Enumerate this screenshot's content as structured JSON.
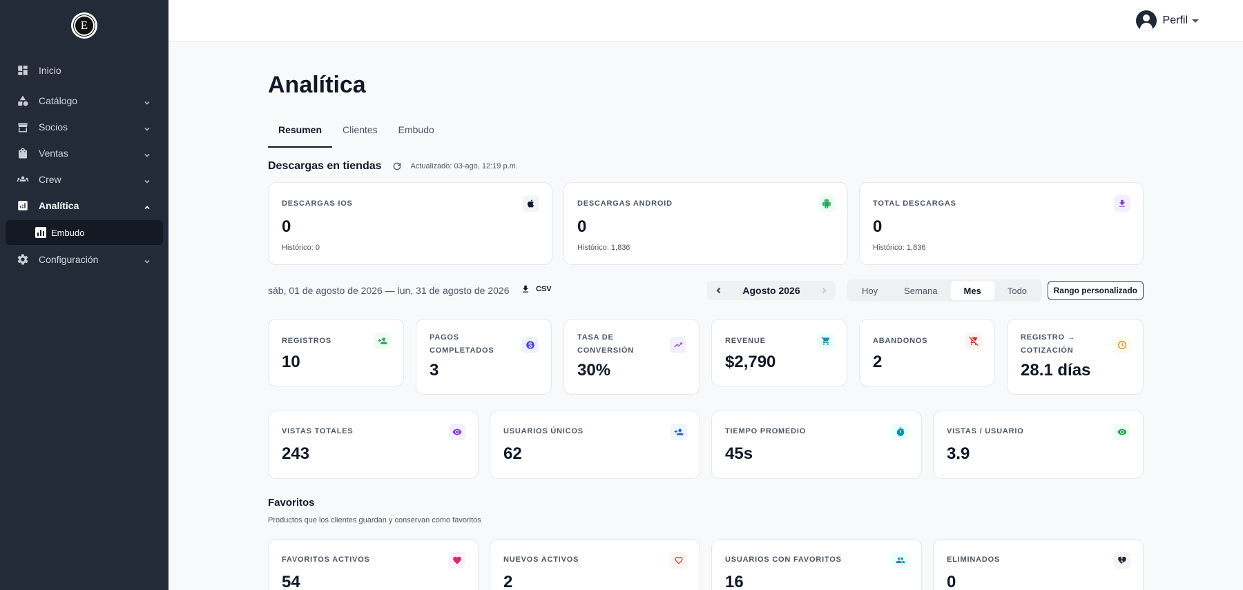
{
  "sidebar": {
    "logo_letter": "E",
    "items": [
      {
        "label": "Inicio"
      },
      {
        "label": "Catálogo"
      },
      {
        "label": "Socios"
      },
      {
        "label": "Ventas"
      },
      {
        "label": "Crew"
      },
      {
        "label": "Analítica"
      },
      {
        "label": "Embudo"
      },
      {
        "label": "Configuración"
      }
    ]
  },
  "topbar": {
    "profile_label": "Perfil"
  },
  "page": {
    "title": "Analítica",
    "tabs": [
      {
        "label": "Resumen"
      },
      {
        "label": "Clientes"
      },
      {
        "label": "Embudo"
      }
    ]
  },
  "downloads": {
    "title": "Descargas en tiendas",
    "updated": "Actualizado: 03-ago, 12:19 p.m.",
    "cards": [
      {
        "label": "Descargas iOS",
        "value": "0",
        "sub": "Histórico: 0",
        "icon": "apple-icon",
        "color": "#111827"
      },
      {
        "label": "Descargas Android",
        "value": "0",
        "sub": "Histórico: 1,836",
        "icon": "android-icon",
        "color": "#22a559"
      },
      {
        "label": "Total descargas",
        "value": "0",
        "sub": "Histórico: 1,836",
        "icon": "download-icon",
        "color": "#7c3aed"
      }
    ]
  },
  "range": {
    "text": "sáb, 01 de agosto de 2026 — lun, 31 de agosto de 2026",
    "csv_label": "CSV",
    "month": "Agosto 2026",
    "segments": [
      {
        "label": "Hoy"
      },
      {
        "label": "Semana"
      },
      {
        "label": "Mes"
      },
      {
        "label": "Todo"
      }
    ],
    "active_segment": "Mes",
    "custom_label": "Rango personalizado"
  },
  "metrics": [
    {
      "label": "Registros",
      "value": "10",
      "icon": "user-plus-icon",
      "color": "#22a559"
    },
    {
      "label": "Pagos completados",
      "value": "3",
      "icon": "dollar-icon",
      "color": "#4f46e5"
    },
    {
      "label": "Tasa de conversión",
      "value": "30%",
      "icon": "trend-up-icon",
      "color": "#7c3aed"
    },
    {
      "label": "Revenue",
      "value": "$2,790",
      "icon": "cart-icon",
      "color": "#0891b2"
    },
    {
      "label": "Abandonos",
      "value": "2",
      "icon": "cart-off-icon",
      "color": "#dc2626"
    },
    {
      "label": "Registro → cotización",
      "value": "28.1 días",
      "icon": "clock-icon",
      "color": "#d97706"
    }
  ],
  "views": [
    {
      "label": "Vistas totales",
      "value": "243",
      "icon": "eye-icon",
      "color": "#7c3aed"
    },
    {
      "label": "Usuarios únicos",
      "value": "62",
      "icon": "user-plus-icon",
      "color": "#2563eb"
    },
    {
      "label": "Tiempo promedio",
      "value": "45s",
      "icon": "stopwatch-icon",
      "color": "#0891b2"
    },
    {
      "label": "Vistas / usuario",
      "value": "3.9",
      "icon": "eye-icon",
      "color": "#16a34a"
    }
  ],
  "favorites": {
    "title": "Favoritos",
    "subtitle": "Productos que los clientes guardan y conservan como favoritos",
    "cards": [
      {
        "label": "Favoritos activos",
        "value": "54",
        "icon": "heart-icon",
        "color": "#db2777"
      },
      {
        "label": "Nuevos activos",
        "value": "2",
        "icon": "heart-outline-icon",
        "color": "#dc2626"
      },
      {
        "label": "Usuarios con favoritos",
        "value": "16",
        "icon": "users-icon",
        "color": "#0891b2"
      },
      {
        "label": "Eliminados",
        "value": "0",
        "icon": "heart-broken-icon",
        "color": "#1f2937"
      }
    ]
  }
}
